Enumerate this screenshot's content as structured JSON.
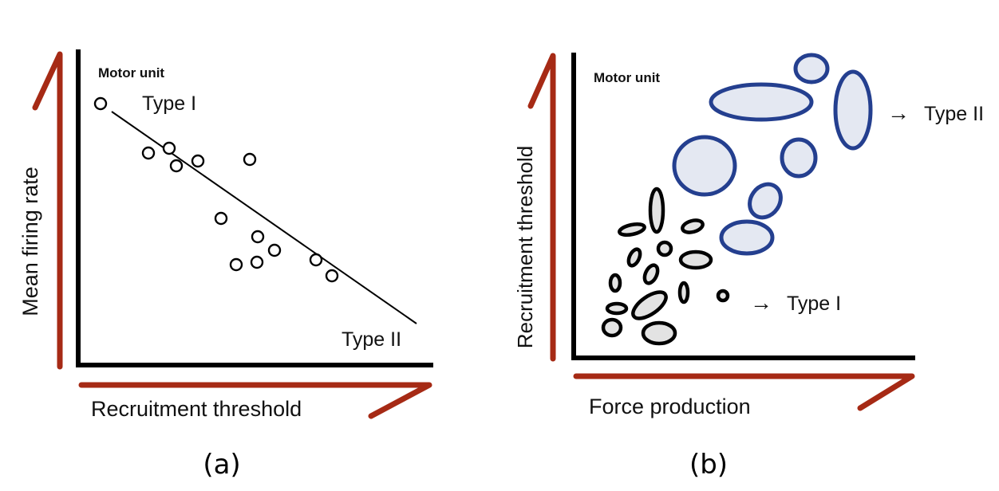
{
  "panels": [
    {
      "caption": "(a)",
      "title": "Motor unit",
      "x_axis_label": "Recruitment threshold",
      "y_axis_label": "Mean firing rate",
      "label_top": "Type I",
      "label_bottom": "Type II"
    },
    {
      "caption": "(b)",
      "title": "Motor unit",
      "x_axis_label": "Force production",
      "y_axis_label": "Recruitment threshold",
      "label_type2": "Type II",
      "label_type1": "Type I",
      "arrow_glyph": "→"
    }
  ],
  "colors": {
    "arrow_red": "#a62a15",
    "axis_black": "#000000",
    "type2_stroke": "#243f8f",
    "type2_fill": "#e4e8f2",
    "type1_fill": "#e3e3e3"
  }
}
